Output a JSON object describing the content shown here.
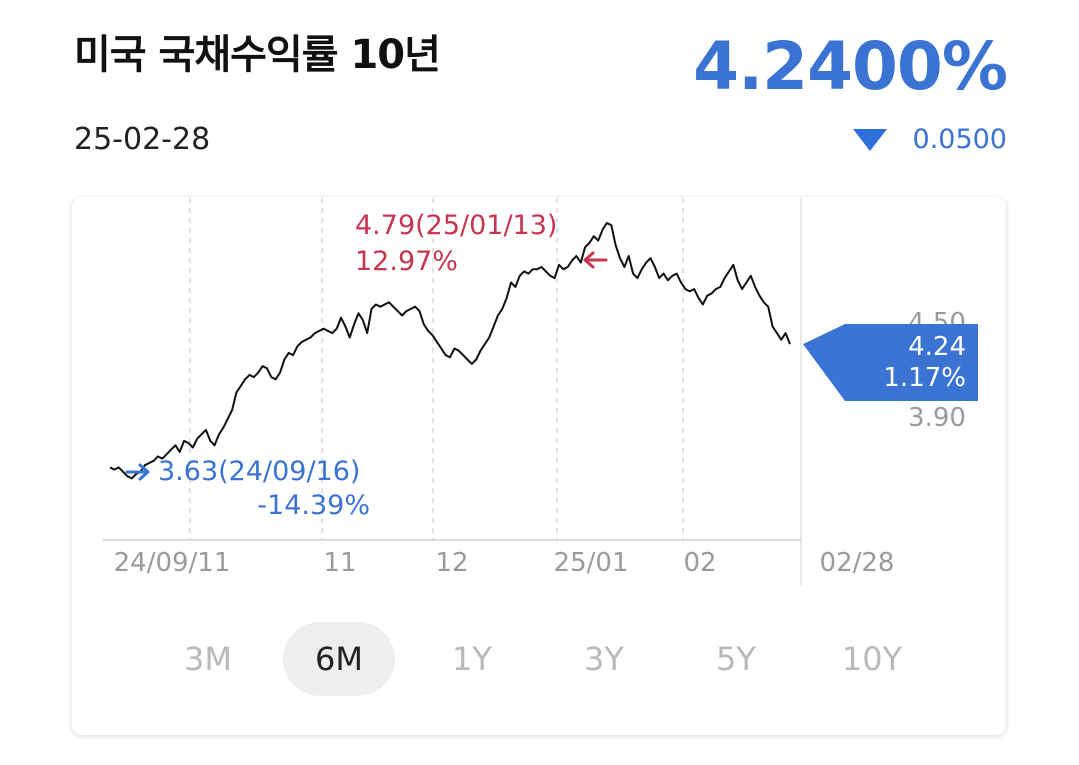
{
  "header": {
    "title": "미국 국채수익률 10년",
    "date": "25-02-28",
    "price": "4.2400%",
    "change": "0.0500",
    "change_direction": "down",
    "change_icon": "down-triangle-icon"
  },
  "colors": {
    "accent_blue": "#3b73d3",
    "high_red": "#c8354f",
    "line": "#111111",
    "tab_inactive": "#b9b9b9",
    "tab_active_bg": "#eeeeee"
  },
  "tabs": [
    {
      "label": "3M",
      "active": false
    },
    {
      "label": "6M",
      "active": true
    },
    {
      "label": "1Y",
      "active": false
    },
    {
      "label": "3Y",
      "active": false
    },
    {
      "label": "5Y",
      "active": false
    },
    {
      "label": "10Y",
      "active": false
    }
  ],
  "chart_data": {
    "type": "line",
    "x_tick_labels": [
      "24/09/11",
      "11",
      "12",
      "25/01",
      "02",
      "02/28"
    ],
    "y_tick_labels": [
      "4.50",
      "3.90"
    ],
    "y_ticks": [
      4.5,
      3.9
    ],
    "ylim": [
      3.35,
      4.94
    ],
    "grid": "vertical dashed",
    "series": [
      {
        "values": [
          3.68,
          3.67,
          3.68,
          3.66,
          3.64,
          3.63,
          3.65,
          3.66,
          3.69,
          3.7,
          3.71,
          3.73,
          3.72,
          3.74,
          3.76,
          3.78,
          3.75,
          3.8,
          3.79,
          3.77,
          3.81,
          3.83,
          3.85,
          3.8,
          3.78,
          3.83,
          3.86,
          3.9,
          3.94,
          4.02,
          4.05,
          4.08,
          4.1,
          4.09,
          4.11,
          4.14,
          4.13,
          4.09,
          4.08,
          4.11,
          4.17,
          4.2,
          4.19,
          4.23,
          4.25,
          4.26,
          4.27,
          4.29,
          4.3,
          4.31,
          4.3,
          4.29,
          4.31,
          4.36,
          4.32,
          4.27,
          4.33,
          4.38,
          4.35,
          4.29,
          4.4,
          4.42,
          4.41,
          4.42,
          4.43,
          4.41,
          4.39,
          4.37,
          4.39,
          4.4,
          4.41,
          4.39,
          4.33,
          4.3,
          4.28,
          4.25,
          4.22,
          4.19,
          4.18,
          4.22,
          4.21,
          4.19,
          4.17,
          4.15,
          4.17,
          4.21,
          4.24,
          4.27,
          4.32,
          4.37,
          4.4,
          4.45,
          4.52,
          4.5,
          4.55,
          4.57,
          4.56,
          4.58,
          4.58,
          4.59,
          4.57,
          4.55,
          4.54,
          4.6,
          4.58,
          4.59,
          4.62,
          4.64,
          4.61,
          4.68,
          4.7,
          4.73,
          4.71,
          4.76,
          4.79,
          4.78,
          4.69,
          4.63,
          4.59,
          4.64,
          4.56,
          4.54,
          4.58,
          4.61,
          4.63,
          4.59,
          4.54,
          4.56,
          4.53,
          4.55,
          4.56,
          4.52,
          4.49,
          4.48,
          4.49,
          4.45,
          4.42,
          4.46,
          4.47,
          4.49,
          4.5,
          4.54,
          4.57,
          4.6,
          4.53,
          4.49,
          4.52,
          4.55,
          4.5,
          4.46,
          4.43,
          4.41,
          4.32,
          4.29,
          4.26,
          4.29,
          4.24
        ]
      }
    ],
    "annotations": {
      "high": {
        "value": 4.79,
        "label": "4.79(25/01/13)",
        "pct": "12.97%",
        "arrow_icon": "arrow-left-icon"
      },
      "low": {
        "value": 3.63,
        "label": "3.63(24/09/16)",
        "pct": "-14.39%",
        "arrow_icon": "arrow-right-icon"
      },
      "current": {
        "value": 4.24,
        "label": "4.24",
        "pct": "1.17%"
      }
    }
  }
}
